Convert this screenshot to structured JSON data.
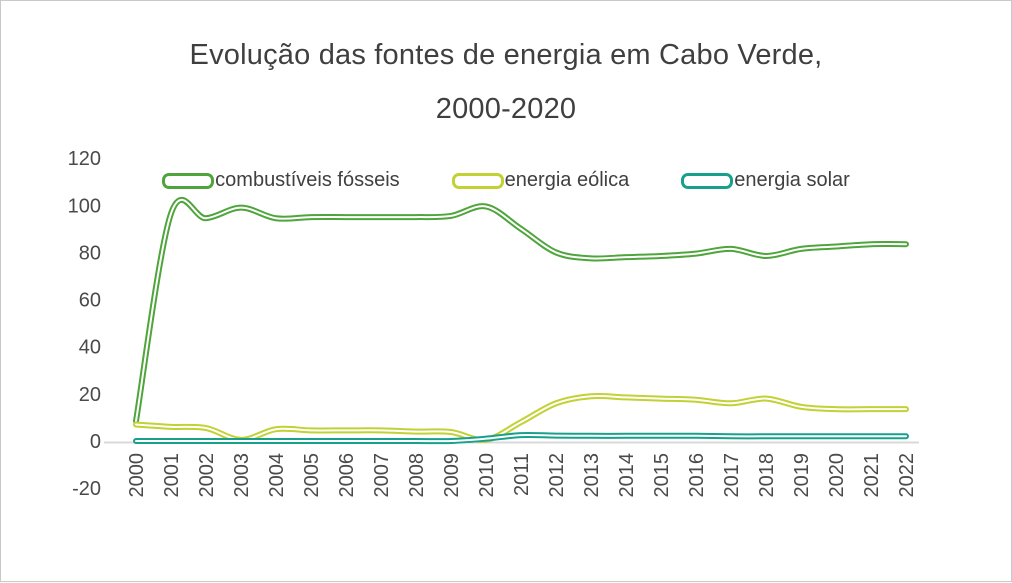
{
  "title": {
    "text": "Evolução das fontes de energia em Cabo Verde,\n2000-2020",
    "color": "#3f3f3f"
  },
  "chart_data": {
    "type": "line",
    "title": "Evolução das fontes de energia em Cabo Verde, 2000-2020",
    "x": [
      2000,
      2001,
      2002,
      2003,
      2004,
      2005,
      2006,
      2007,
      2008,
      2009,
      2010,
      2011,
      2012,
      2013,
      2014,
      2015,
      2016,
      2017,
      2018,
      2019,
      2020,
      2021,
      2022
    ],
    "series": [
      {
        "id": "fossil",
        "name": "combustíveis fósseis",
        "color": "#4fa53c",
        "values": [
          8.5,
          96.5,
          94.5,
          99,
          94.5,
          95,
          95,
          95,
          95,
          95.5,
          99.5,
          90,
          80,
          77.5,
          78,
          78.5,
          79.5,
          81.5,
          78.5,
          81.5,
          82.5,
          83.5,
          83.5
        ]
      },
      {
        "id": "wind",
        "name": "energia eólica",
        "color": "#c2d134",
        "values": [
          7,
          6,
          5.5,
          0.5,
          5,
          4.5,
          4.5,
          4.5,
          4,
          3.8,
          0.5,
          8,
          16,
          19,
          18.5,
          18,
          17.5,
          16,
          18,
          14.5,
          13.5,
          13.5,
          13.5
        ]
      },
      {
        "id": "solar",
        "name": "energia solar",
        "color": "#18a08c",
        "values": [
          0,
          0,
          0,
          0,
          0,
          0,
          0,
          0,
          0,
          0,
          1,
          2.5,
          2.3,
          2.2,
          2.2,
          2.2,
          2.2,
          2,
          2,
          2,
          2,
          2,
          2
        ]
      }
    ],
    "xlabel": "",
    "ylabel": "",
    "ylim": [
      -20,
      120
    ],
    "yticks": [
      120,
      100,
      80,
      60,
      40,
      20,
      0,
      -20
    ],
    "grid": false,
    "legend_position": "top",
    "line_style": "smooth double-stroke lines with white core and rounded caps",
    "axis_line_color": "#d9d9d9",
    "tick_label_color": "#4a4a4a"
  }
}
